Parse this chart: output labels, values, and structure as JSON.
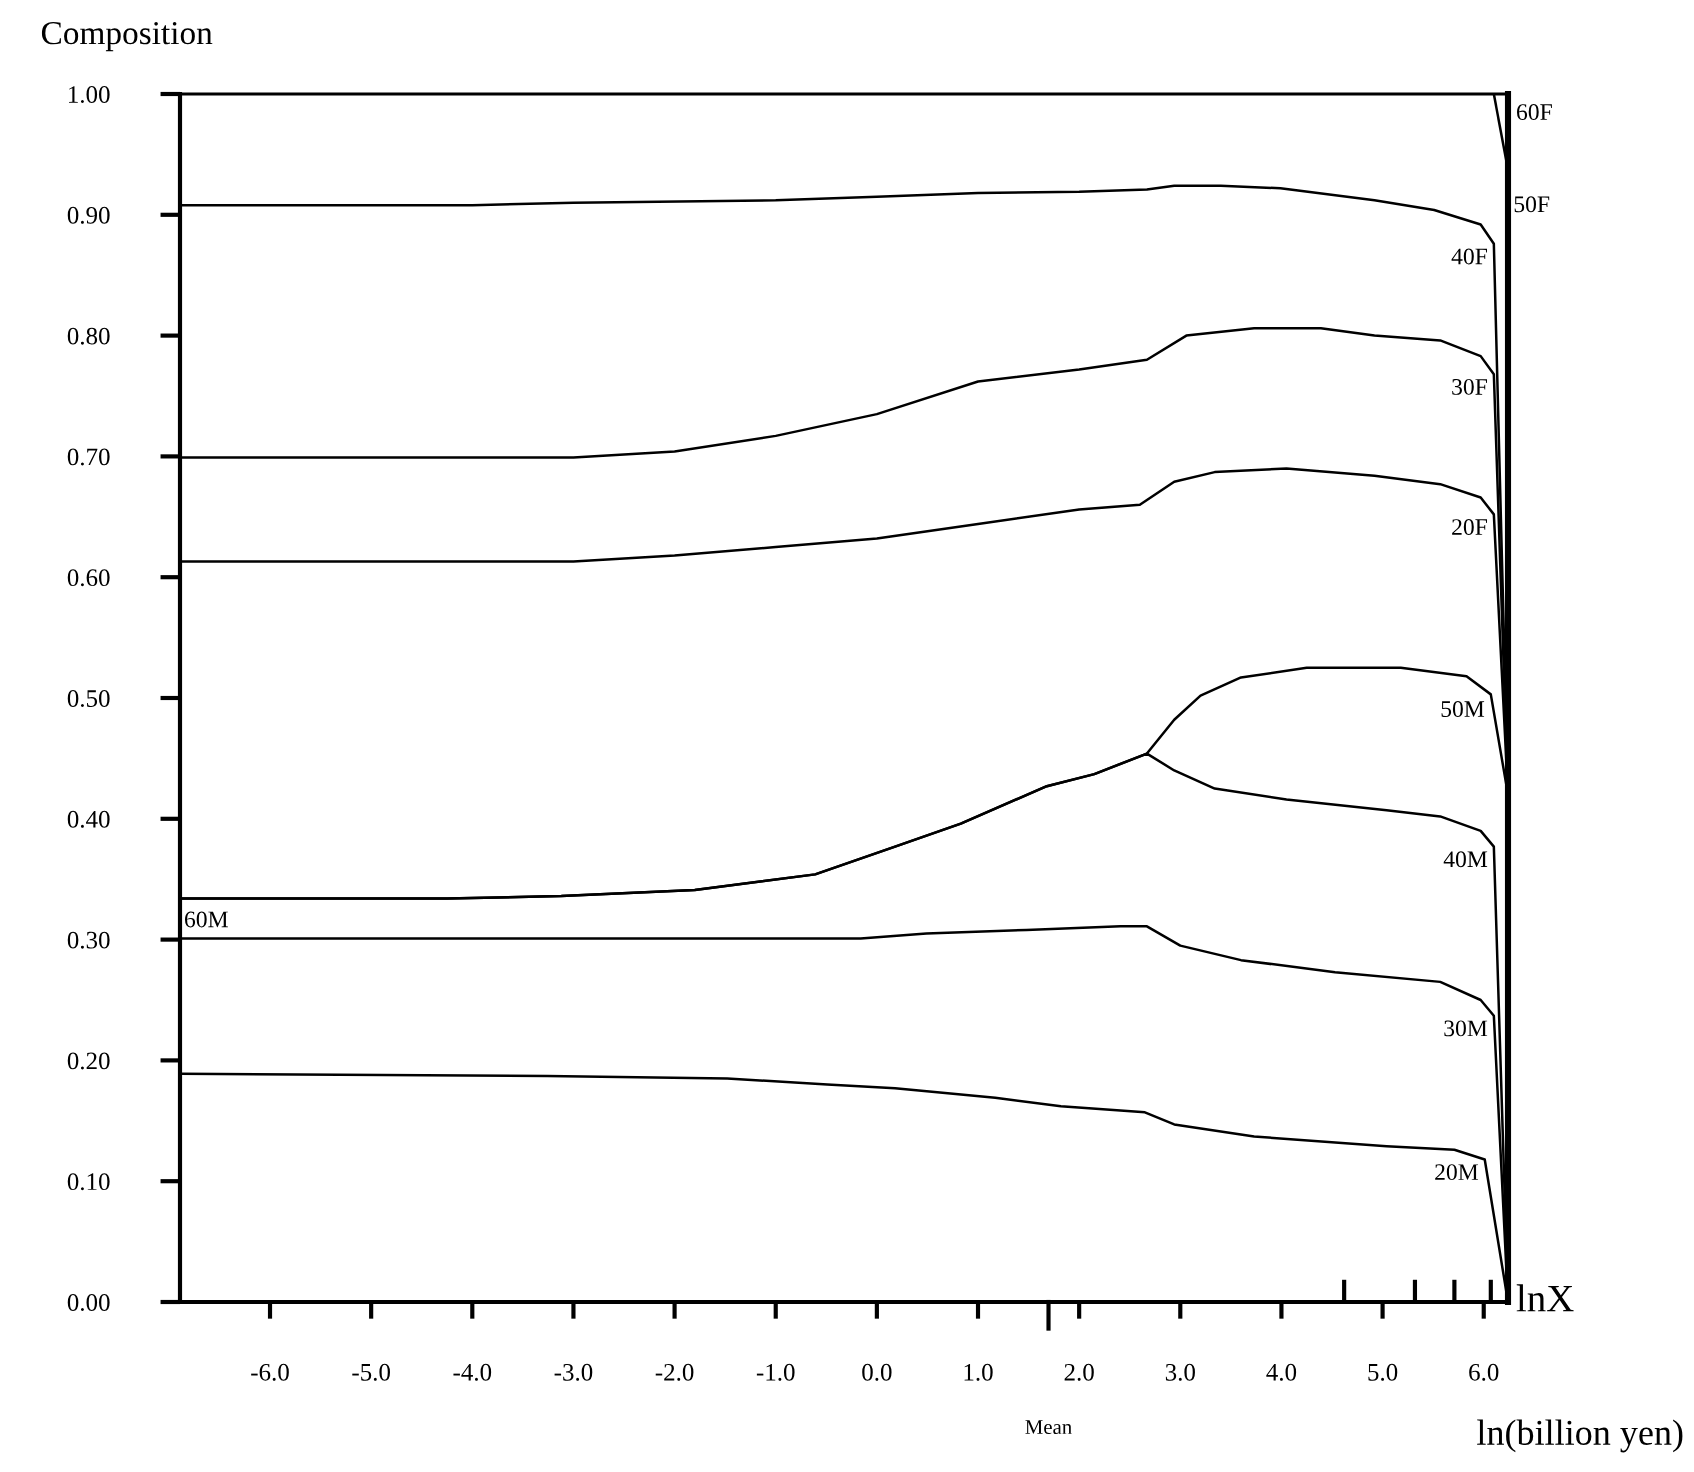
{
  "chart_data": {
    "type": "line",
    "ylabel": "Composition",
    "xlabel": "ln(billion yen)",
    "xlim": [
      -6.89,
      6.24
    ],
    "ylim": [
      0,
      1
    ],
    "xticks": [
      {
        "value": -6,
        "label": "-6.0"
      },
      {
        "value": -5,
        "label": "-5.0"
      },
      {
        "value": -4,
        "label": "-4.0"
      },
      {
        "value": -3,
        "label": "-3.0"
      },
      {
        "value": -2,
        "label": "-2.0"
      },
      {
        "value": -1,
        "label": "-1.0"
      },
      {
        "value": 0,
        "label": "0.0"
      },
      {
        "value": 1,
        "label": "1.0"
      },
      {
        "value": 2,
        "label": "2.0"
      },
      {
        "value": 3,
        "label": "3.0"
      },
      {
        "value": 4,
        "label": "4.0"
      },
      {
        "value": 5,
        "label": "5.0"
      },
      {
        "value": 6,
        "label": "6.0"
      },
      {
        "value": 4.62,
        "label": null
      },
      {
        "value": 5.32,
        "label": null
      },
      {
        "value": 5.71,
        "label": null
      },
      {
        "value": 6.07,
        "label": null
      }
    ],
    "yticks": [
      {
        "value": 0,
        "label": "0.00"
      },
      {
        "value": 0.1,
        "label": "0.10"
      },
      {
        "value": 0.2,
        "label": "0.20"
      },
      {
        "value": 0.3,
        "label": "0.30"
      },
      {
        "value": 0.4,
        "label": "0.40"
      },
      {
        "value": 0.5,
        "label": "0.50"
      },
      {
        "value": 0.6,
        "label": "0.60"
      },
      {
        "value": 0.7,
        "label": "0.70"
      },
      {
        "value": 0.8,
        "label": "0.80"
      },
      {
        "value": 0.9,
        "label": "0.90"
      },
      {
        "value": 1.0,
        "label": "1.00"
      }
    ],
    "grid": false,
    "legend": false,
    "marker": "none",
    "line_style": "solid",
    "series": [
      {
        "name": "20M",
        "color": "#000000",
        "x": [
          -6.89,
          -3.26,
          -1.48,
          -0.49,
          0.18,
          1.17,
          1.82,
          2.65,
          2.94,
          3.73,
          5.04,
          5.71,
          6.01,
          6.24
        ],
        "values": [
          0.189,
          0.187,
          0.185,
          0.18,
          0.177,
          0.169,
          0.162,
          0.157,
          0.147,
          0.137,
          0.129,
          0.126,
          0.118,
          0.0
        ]
      },
      {
        "name": "30M",
        "color": "#000000",
        "x": [
          -6.89,
          -0.16,
          0.49,
          1.48,
          2.41,
          2.67,
          3.0,
          3.6,
          4.53,
          5.57,
          5.97,
          6.1,
          6.24
        ],
        "values": [
          0.301,
          0.301,
          0.305,
          0.308,
          0.311,
          0.311,
          0.295,
          0.283,
          0.273,
          0.265,
          0.25,
          0.237,
          0.0
        ]
      },
      {
        "name": "40M",
        "color": "#000000",
        "x": [
          -6.89,
          -4.25,
          -3.12,
          -1.8,
          -0.61,
          0.18,
          0.83,
          1.68,
          2.15,
          2.67,
          2.94,
          3.34,
          4.05,
          5.04,
          5.57,
          5.97,
          6.1,
          6.24
        ],
        "values": [
          0.334,
          0.334,
          0.336,
          0.341,
          0.354,
          0.377,
          0.396,
          0.427,
          0.437,
          0.454,
          0.44,
          0.425,
          0.416,
          0.407,
          0.402,
          0.39,
          0.377,
          0.0
        ]
      },
      {
        "name": "50M",
        "color": "#000000",
        "x": [
          -6.89,
          -4.25,
          -3.12,
          -1.8,
          -0.61,
          0.18,
          0.83,
          1.68,
          2.15,
          2.67,
          2.94,
          3.2,
          3.6,
          4.25,
          5.18,
          5.83,
          6.07,
          6.24
        ],
        "values": [
          0.334,
          0.334,
          0.336,
          0.341,
          0.354,
          0.377,
          0.396,
          0.427,
          0.437,
          0.454,
          0.482,
          0.502,
          0.517,
          0.525,
          0.525,
          0.518,
          0.503,
          0.42
        ]
      },
      {
        "name": "20F",
        "color": "#000000",
        "x": [
          -6.89,
          -3.0,
          -2.0,
          -1.0,
          0.0,
          1.0,
          2.0,
          2.6,
          2.94,
          3.34,
          4.05,
          4.92,
          5.57,
          5.97,
          6.1,
          6.24
        ],
        "values": [
          0.613,
          0.613,
          0.618,
          0.625,
          0.632,
          0.644,
          0.656,
          0.66,
          0.679,
          0.687,
          0.69,
          0.684,
          0.677,
          0.666,
          0.652,
          0.42
        ]
      },
      {
        "name": "30F",
        "color": "#000000",
        "x": [
          -6.89,
          -3.0,
          -2.0,
          -1.0,
          0.0,
          1.0,
          2.0,
          2.67,
          3.06,
          3.73,
          4.39,
          4.92,
          5.57,
          5.97,
          6.1,
          6.24
        ],
        "values": [
          0.699,
          0.699,
          0.704,
          0.717,
          0.735,
          0.762,
          0.772,
          0.78,
          0.8,
          0.806,
          0.806,
          0.8,
          0.796,
          0.783,
          0.768,
          0.42
        ]
      },
      {
        "name": "40F",
        "color": "#000000",
        "x": [
          -6.89,
          -4.0,
          -3.0,
          -1.0,
          0.0,
          1.0,
          2.0,
          2.67,
          2.94,
          3.4,
          3.99,
          4.92,
          5.51,
          5.97,
          6.1,
          6.24
        ],
        "values": [
          0.908,
          0.908,
          0.91,
          0.912,
          0.915,
          0.918,
          0.919,
          0.921,
          0.924,
          0.924,
          0.922,
          0.912,
          0.904,
          0.892,
          0.876,
          0.42
        ]
      },
      {
        "name": "60F",
        "color": "#000000",
        "x": [
          6.1,
          6.24
        ],
        "values": [
          1.0,
          0.937
        ]
      }
    ],
    "annotations": [
      "60M",
      "50F",
      "lnX",
      "Mean"
    ]
  }
}
